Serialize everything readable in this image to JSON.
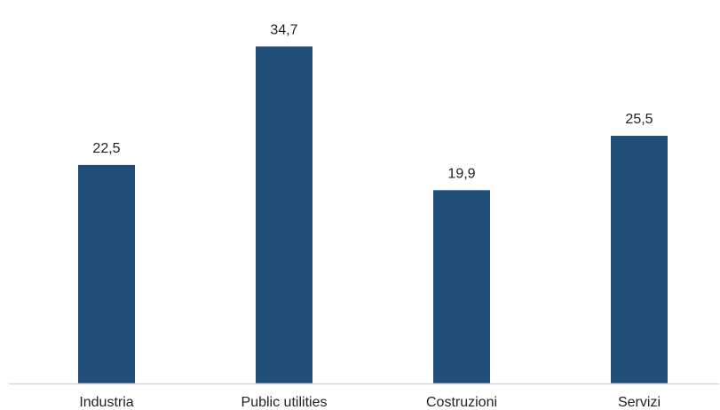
{
  "chart_data": {
    "type": "bar",
    "categories": [
      "Industria",
      "Public utilities",
      "Costruzioni",
      "Servizi"
    ],
    "values": [
      22.5,
      34.7,
      19.9,
      25.5
    ],
    "value_labels": [
      "22,5",
      "34,7",
      "19,9",
      "25,5"
    ],
    "title": "",
    "xlabel": "",
    "ylabel": "",
    "ylim": [
      0,
      40
    ],
    "grid": false,
    "legend": "none"
  },
  "colors": {
    "bar": "#1f4e79",
    "axis": "#d9d9d9",
    "text": "#222222"
  }
}
